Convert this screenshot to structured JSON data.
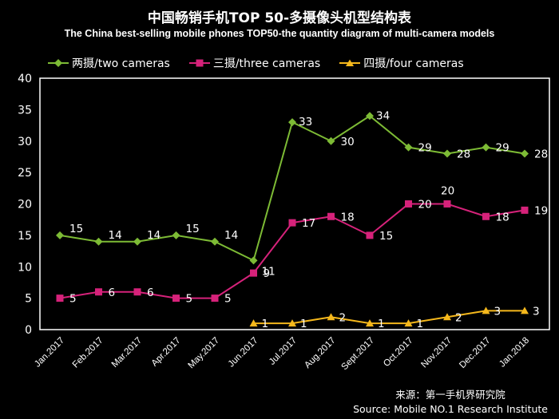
{
  "header": {
    "title_zh": "中国畅销手机TOP 50-多摄像头机型结构表",
    "title_en": "The China best-selling mobile phones TOP50-the quantity diagram of multi-camera models"
  },
  "source": {
    "line1": "来源：第一手机界研究院",
    "line2": "Source: Mobile NO.1 Research Institute"
  },
  "colors": {
    "background": "#000000",
    "plot_border": "#ffffff",
    "two": "#7dbb35",
    "three": "#d6227a",
    "four": "#f5b81c"
  },
  "chart_data": {
    "type": "line",
    "title": "中国畅销手机TOP 50-多摄像头机型结构表",
    "subtitle": "The China best-selling mobile phones TOP50-the quantity diagram of multi-camera models",
    "xlabel": "",
    "ylabel": "",
    "ylim": [
      0,
      40
    ],
    "yticks": [
      "0",
      "5",
      "10",
      "15",
      "20",
      "25",
      "30",
      "35",
      "40"
    ],
    "grid": false,
    "legend_position": "top",
    "categories": [
      "Jan.2017",
      "Feb.2017",
      "Mar.2017",
      "Apr.2017",
      "May.2017",
      "Jun.2017",
      "Jul.2017",
      "Aug.2017",
      "Sept.2017",
      "Oct.2017",
      "Nov.2017",
      "Dec.2017",
      "Jan.2018"
    ],
    "series": [
      {
        "name": "两摄/two cameras",
        "marker": "diamond",
        "color": "#7dbb35",
        "values": [
          15,
          14,
          14,
          15,
          14,
          11,
          33,
          30,
          34,
          29,
          28,
          29,
          28
        ]
      },
      {
        "name": "三摄/three cameras",
        "marker": "square",
        "color": "#d6227a",
        "values": [
          5,
          6,
          6,
          5,
          5,
          9,
          17,
          18,
          15,
          20,
          20,
          18,
          19
        ]
      },
      {
        "name": "四摄/four cameras",
        "marker": "triangle",
        "color": "#f5b81c",
        "values": [
          null,
          null,
          null,
          null,
          null,
          1,
          1,
          2,
          1,
          1,
          2,
          3,
          3
        ]
      }
    ]
  }
}
